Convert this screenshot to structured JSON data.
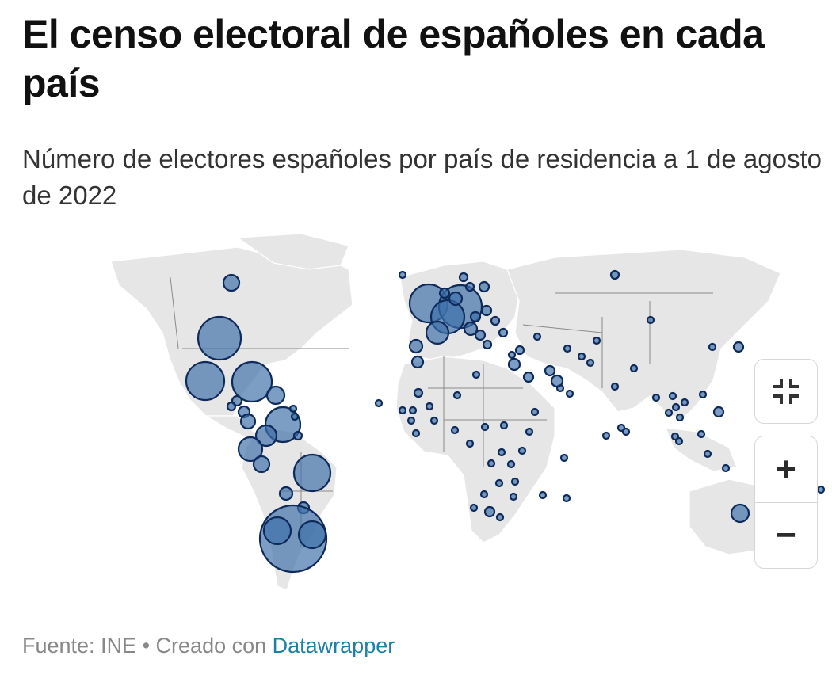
{
  "header": {
    "title": "El censo electoral de españoles en cada país",
    "subtitle": "Número de electores españoles por país de residencia a 1 de agosto de 2022"
  },
  "map": {
    "colors": {
      "bubble_fill": "#3e70aa",
      "bubble_stroke": "#0e2a5a",
      "land": "#e6e6e6"
    },
    "controls": {
      "fit_icon": "fullscreen-exit-icon",
      "zoom_in_label": "+",
      "zoom_out_label": "−"
    }
  },
  "footer": {
    "source": "Fuente: INE",
    "separator": " • ",
    "created_with": "Creado con ",
    "tool_link": "Datawrapper"
  }
}
